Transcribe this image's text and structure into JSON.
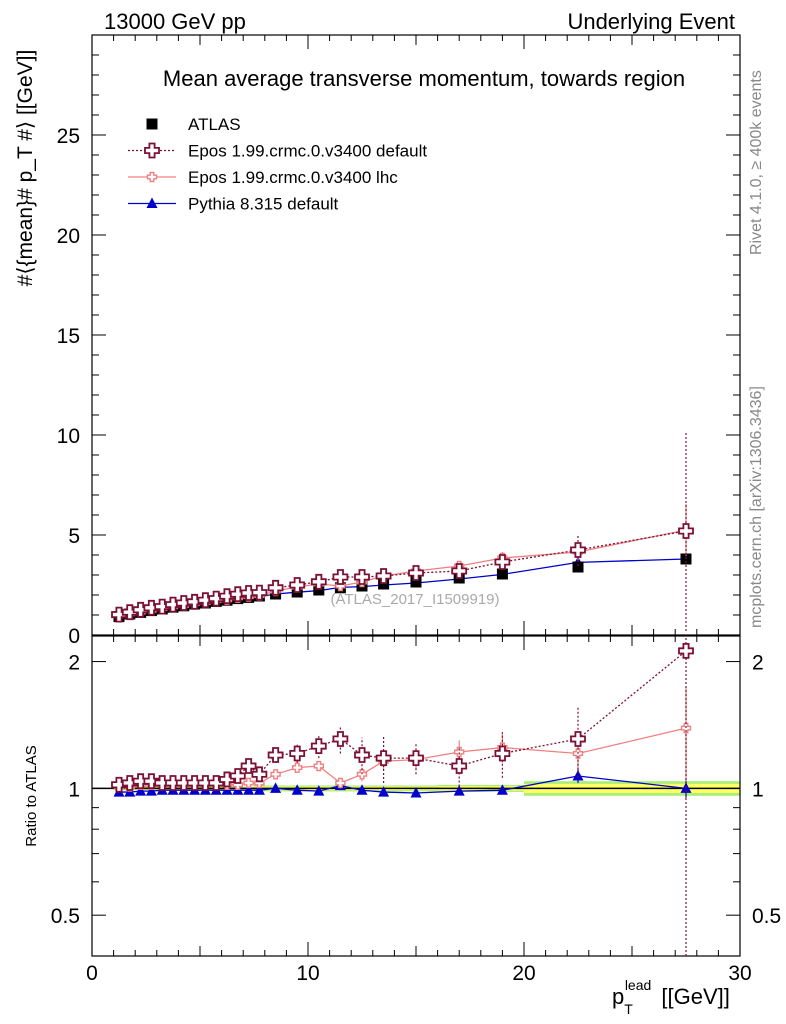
{
  "header": {
    "left": "13000 GeV pp",
    "right": "Underlying Event"
  },
  "side_labels": {
    "rivet": "Rivet 4.1.0, ≥ 400k events",
    "mcplots": "mcplots.cern.ch [arXiv:1306.3436]"
  },
  "colors": {
    "data": "#000000",
    "epos_default": "#7b1034",
    "epos_lhc": "#f08080",
    "pythia": "#0000cc",
    "band_inner": "#ffff66",
    "band_outer": "#aaee77"
  },
  "chart_data": [
    {
      "type": "scatter",
      "title": "Mean average transverse momentum, towards region",
      "xlabel": "p_T^lead [[GeV]]",
      "ylabel": "#⟨{mean}# p_T #⟩ [[GeV]]",
      "watermark": "(ATLAS_2017_I1509919)",
      "xlim": [
        0,
        30
      ],
      "ylim": [
        0,
        30
      ],
      "y_ticks": [
        0,
        5,
        10,
        15,
        20,
        25
      ],
      "x_ticks": [
        0,
        10,
        20,
        30
      ],
      "legend_position": "top-left",
      "x": [
        1.25,
        1.75,
        2.25,
        2.75,
        3.25,
        3.75,
        4.25,
        4.75,
        5.25,
        5.75,
        6.25,
        6.75,
        7.25,
        7.75,
        8.5,
        9.5,
        10.5,
        11.5,
        12.5,
        13.5,
        15.0,
        17.0,
        19.0,
        22.5,
        27.5
      ],
      "series": [
        {
          "name": "ATLAS",
          "marker": "square",
          "values": [
            0.92,
            1.05,
            1.13,
            1.22,
            1.3,
            1.39,
            1.46,
            1.55,
            1.6,
            1.68,
            1.74,
            1.82,
            1.88,
            1.95,
            2.05,
            2.15,
            2.25,
            2.36,
            2.45,
            2.55,
            2.65,
            2.85,
            3.05,
            3.4,
            3.8
          ]
        },
        {
          "name": "Epos 1.99.crmc.0.v3400 default",
          "marker": "open-cross",
          "values": [
            1.02,
            1.14,
            1.26,
            1.36,
            1.42,
            1.52,
            1.6,
            1.66,
            1.74,
            1.82,
            1.94,
            2.04,
            2.1,
            2.12,
            2.36,
            2.5,
            2.66,
            2.9,
            2.9,
            2.95,
            3.1,
            3.2,
            3.65,
            4.25,
            5.2
          ],
          "errors": [
            0.05,
            0.05,
            0.05,
            0.05,
            0.05,
            0.05,
            0.05,
            0.05,
            0.05,
            0.05,
            0.05,
            0.06,
            0.06,
            0.06,
            0.08,
            0.1,
            0.12,
            0.15,
            0.2,
            0.25,
            0.3,
            0.35,
            0.4,
            0.8,
            5.0
          ]
        },
        {
          "name": "Epos 1.99.crmc.0.v3400 lhc",
          "marker": "small-open-cross",
          "values": [
            0.97,
            1.06,
            1.15,
            1.24,
            1.32,
            1.41,
            1.48,
            1.57,
            1.63,
            1.72,
            1.76,
            1.86,
            1.92,
            1.97,
            2.2,
            2.4,
            2.55,
            2.45,
            2.65,
            2.95,
            3.2,
            3.45,
            3.85,
            4.15,
            5.25
          ],
          "errors": [
            0.03,
            0.03,
            0.03,
            0.03,
            0.03,
            0.03,
            0.03,
            0.03,
            0.03,
            0.03,
            0.03,
            0.04,
            0.04,
            0.04,
            0.06,
            0.08,
            0.1,
            0.12,
            0.15,
            0.2,
            0.22,
            0.25,
            0.3,
            0.4,
            1.3
          ]
        },
        {
          "name": "Pythia 8.315 default",
          "marker": "triangle",
          "values": [
            0.88,
            1.02,
            1.11,
            1.19,
            1.28,
            1.36,
            1.43,
            1.51,
            1.58,
            1.66,
            1.72,
            1.8,
            1.86,
            1.92,
            2.05,
            2.14,
            2.22,
            2.38,
            2.42,
            2.5,
            2.6,
            2.8,
            3.03,
            3.63,
            3.8
          ]
        }
      ]
    },
    {
      "type": "scatter",
      "ylabel": "Ratio to ATLAS",
      "xlabel": "p_T^lead [[GeV]]",
      "yscale": "log",
      "ylim": [
        0.4,
        2.3
      ],
      "y_ticks": [
        0.5,
        1,
        2
      ],
      "y_tick_labels": [
        "0.5",
        "1",
        "2"
      ],
      "x_ticks": [
        0,
        10,
        20,
        30
      ],
      "reference_line": 1,
      "x": [
        1.25,
        1.75,
        2.25,
        2.75,
        3.25,
        3.75,
        4.25,
        4.75,
        5.25,
        5.75,
        6.25,
        6.75,
        7.25,
        7.75,
        8.5,
        9.5,
        10.5,
        11.5,
        12.5,
        13.5,
        15.0,
        17.0,
        19.0,
        22.5,
        27.5
      ],
      "series": [
        {
          "name": "Epos 1.99.crmc.0.v3400 default",
          "values": [
            1.02,
            1.03,
            1.04,
            1.04,
            1.03,
            1.03,
            1.03,
            1.03,
            1.03,
            1.03,
            1.05,
            1.07,
            1.13,
            1.08,
            1.2,
            1.21,
            1.26,
            1.31,
            1.2,
            1.18,
            1.18,
            1.13,
            1.21,
            1.31,
            2.12
          ],
          "errors": [
            0.02,
            0.02,
            0.02,
            0.02,
            0.02,
            0.02,
            0.02,
            0.02,
            0.02,
            0.02,
            0.03,
            0.03,
            0.04,
            0.04,
            0.05,
            0.06,
            0.08,
            0.1,
            0.12,
            0.15,
            0.1,
            0.12,
            0.15,
            0.25,
            2.5
          ]
        },
        {
          "name": "Epos 1.99.crmc.0.v3400 lhc",
          "values": [
            1.01,
            1.01,
            1.02,
            1.02,
            1.02,
            1.02,
            1.02,
            1.02,
            1.02,
            1.03,
            1.02,
            1.02,
            1.03,
            1.03,
            1.08,
            1.12,
            1.13,
            1.03,
            1.08,
            1.16,
            1.17,
            1.22,
            1.25,
            1.21,
            1.39
          ],
          "errors": [
            0.01,
            0.01,
            0.01,
            0.01,
            0.01,
            0.01,
            0.01,
            0.01,
            0.01,
            0.01,
            0.01,
            0.01,
            0.01,
            0.01,
            0.02,
            0.03,
            0.03,
            0.03,
            0.04,
            0.05,
            0.06,
            0.08,
            0.1,
            0.1,
            0.35
          ]
        },
        {
          "name": "Pythia 8.315 default",
          "values": [
            0.98,
            0.98,
            0.985,
            0.985,
            0.99,
            0.99,
            0.99,
            0.99,
            0.99,
            0.99,
            0.99,
            0.99,
            0.99,
            0.99,
            1.0,
            0.99,
            0.985,
            1.015,
            0.99,
            0.98,
            0.975,
            0.985,
            0.99,
            1.07,
            1.0
          ],
          "errors": [
            0.005,
            0.005,
            0.005,
            0.005,
            0.005,
            0.005,
            0.005,
            0.005,
            0.005,
            0.005,
            0.005,
            0.005,
            0.005,
            0.005,
            0.01,
            0.01,
            0.01,
            0.02,
            0.02,
            0.02,
            0.02,
            0.02,
            0.02,
            0.04,
            0.05
          ]
        }
      ]
    }
  ]
}
